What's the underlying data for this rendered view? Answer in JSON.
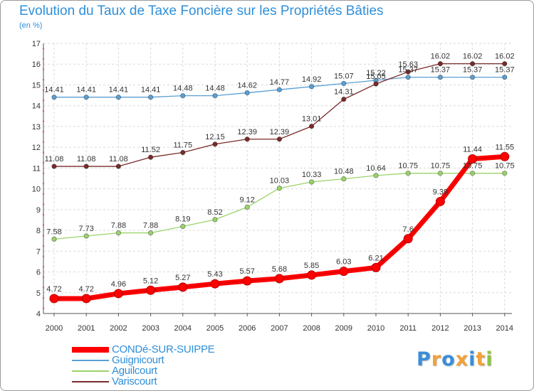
{
  "chart_data": {
    "type": "line",
    "title": "Evolution du Taux de Taxe Foncière sur les Propriétés Bâties",
    "ylabel": "(en %)",
    "xlabel": "",
    "ylim": [
      4,
      17
    ],
    "yticks": [
      "4",
      "5",
      "6",
      "7",
      "8",
      "9",
      "10",
      "11",
      "12",
      "13",
      "14",
      "15",
      "16",
      "17"
    ],
    "x": [
      "2000",
      "2001",
      "2002",
      "2003",
      "2004",
      "2005",
      "2006",
      "2007",
      "2008",
      "2009",
      "2010",
      "2011",
      "2012",
      "2013",
      "2014"
    ],
    "grid": true,
    "legend_position": "bottom-left",
    "series": [
      {
        "name": "Guignicourt",
        "color": "#5a9fd4",
        "values": [
          14.41,
          14.41,
          14.41,
          14.41,
          14.48,
          14.48,
          14.62,
          14.77,
          14.92,
          15.07,
          15.22,
          15.37,
          15.37,
          15.37,
          15.37
        ],
        "labels": [
          "14.41",
          "14.41",
          "14.41",
          "14.41",
          "14.48",
          "14.48",
          "14.62",
          "14.77",
          "14.92",
          "15.07",
          "15.22",
          "15.37",
          "15.37",
          "15.37",
          "15.37"
        ]
      },
      {
        "name": "Variscourt",
        "color": "#7a2a2a",
        "values": [
          11.08,
          11.08,
          11.08,
          11.52,
          11.75,
          12.15,
          12.39,
          12.39,
          13.01,
          14.31,
          15.05,
          15.63,
          16.02,
          16.02,
          16.02
        ],
        "labels": [
          "11.08",
          "11.08",
          "11.08",
          "11.52",
          "11.75",
          "12.15",
          "12.39",
          "12.39",
          "13.01",
          "14.31",
          "15.05",
          "15.63",
          "16.02",
          "16.02",
          "16.02"
        ]
      },
      {
        "name": "Aguilcourt",
        "color": "#9ad46a",
        "values": [
          7.58,
          7.73,
          7.88,
          7.88,
          8.19,
          8.52,
          9.12,
          10.03,
          10.33,
          10.48,
          10.64,
          10.75,
          10.75,
          10.75,
          10.75
        ],
        "labels": [
          "7.58",
          "7.73",
          "7.88",
          "7.88",
          "8.19",
          "8.52",
          "9.12",
          "10.03",
          "10.33",
          "10.48",
          "10.64",
          "10.75",
          "10.75",
          "10.75",
          "10.75"
        ]
      },
      {
        "name": "CONDé-SUR-SUIPPE",
        "color": "#ff0000",
        "values": [
          4.72,
          4.72,
          4.96,
          5.12,
          5.27,
          5.43,
          5.57,
          5.68,
          5.85,
          6.03,
          6.21,
          7.6,
          9.39,
          11.44,
          11.55
        ],
        "labels": [
          "4.72",
          "4.72",
          "4.96",
          "5.12",
          "5.27",
          "5.43",
          "5.57",
          "5.68",
          "5.85",
          "6.03",
          "6.21",
          "7.6",
          "9.39",
          "11.44",
          "11.55"
        ]
      }
    ],
    "legend_order": [
      "CONDé-SUR-SUIPPE",
      "Guignicourt",
      "Aguilcourt",
      "Variscourt"
    ]
  },
  "logo": {
    "letters": [
      "P",
      "r",
      "o",
      "x",
      "i",
      "t",
      "i"
    ],
    "colors": [
      "#3b8ed8",
      "#f2a23a",
      "#3b8ed8",
      "#f2a23a",
      "#3b8ed8",
      "#f2a23a",
      "#8cc63f"
    ]
  }
}
